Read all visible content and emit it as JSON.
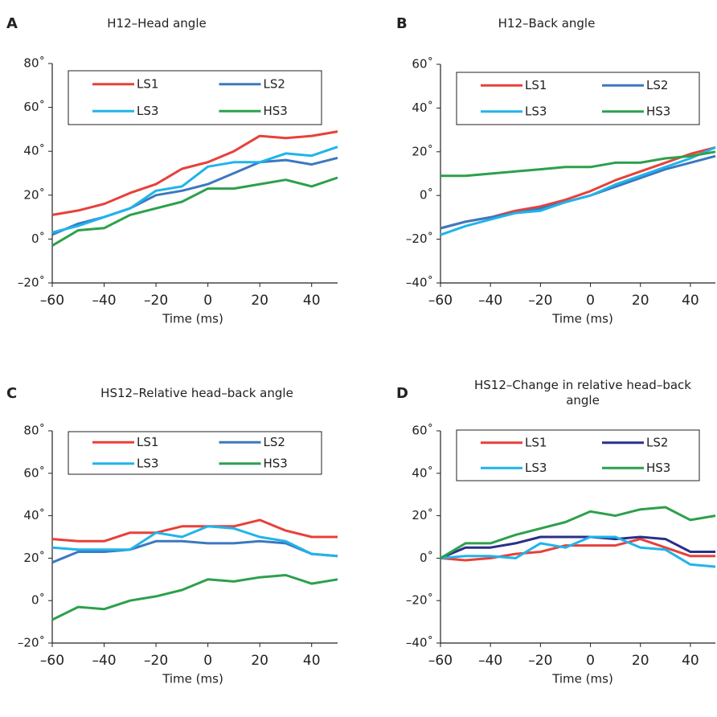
{
  "chart_data": [
    {
      "type": "line",
      "label": "A",
      "title": "H12–Head angle",
      "xlabel": "Time (ms)",
      "x": [
        -60,
        -50,
        -40,
        -30,
        -20,
        -10,
        0,
        10,
        20,
        30,
        40,
        50
      ],
      "xlim": [
        -60,
        50
      ],
      "xticks": [
        {
          "value": -60,
          "label": "–60"
        },
        {
          "value": -40,
          "label": "–40"
        },
        {
          "value": -20,
          "label": "–20"
        },
        0,
        20,
        40
      ],
      "ylim": [
        -20,
        80
      ],
      "yticks": [
        {
          "value": -20,
          "label": "–20˚"
        },
        {
          "value": 0,
          "label": "0˚"
        },
        {
          "value": 20,
          "label": "20˚"
        },
        {
          "value": 40,
          "label": "40˚"
        },
        {
          "value": 60,
          "label": "60˚"
        },
        {
          "value": 80,
          "label": "80˚"
        }
      ],
      "series": [
        {
          "name": "LS1",
          "color": "#e8403a",
          "values": [
            11,
            13,
            16,
            21,
            25,
            32,
            35,
            40,
            47,
            46,
            47,
            49
          ]
        },
        {
          "name": "LS2",
          "color": "#3c78c0",
          "values": [
            2,
            7,
            10,
            14,
            20,
            22,
            25,
            30,
            35,
            36,
            34,
            37
          ]
        },
        {
          "name": "LS3",
          "color": "#20b4ea",
          "values": [
            3,
            6,
            10,
            14,
            22,
            24,
            33,
            35,
            35,
            39,
            38,
            42
          ]
        },
        {
          "name": "HS3",
          "color": "#2ca04c",
          "values": [
            -3,
            4,
            5,
            11,
            14,
            17,
            23,
            23,
            25,
            27,
            24,
            28
          ]
        }
      ]
    },
    {
      "type": "line",
      "label": "B",
      "title": "H12–Back angle",
      "xlabel": "Time (ms)",
      "x": [
        -60,
        -50,
        -40,
        -30,
        -20,
        -10,
        0,
        10,
        20,
        30,
        40,
        50
      ],
      "xlim": [
        -60,
        50
      ],
      "xticks": [
        {
          "value": -60,
          "label": "–60"
        },
        {
          "value": -40,
          "label": "–40"
        },
        {
          "value": -20,
          "label": "–20"
        },
        0,
        20,
        40
      ],
      "ylim": [
        -40,
        60
      ],
      "yticks": [
        {
          "value": -40,
          "label": "–40˚"
        },
        {
          "value": -20,
          "label": "–20˚"
        },
        {
          "value": 0,
          "label": "0˚"
        },
        {
          "value": 20,
          "label": "20˚"
        },
        {
          "value": 40,
          "label": "40˚"
        },
        {
          "value": 60,
          "label": "60˚"
        }
      ],
      "series": [
        {
          "name": "LS1",
          "color": "#e8403a",
          "values": [
            -15,
            -12,
            -10,
            -7,
            -5,
            -2,
            2,
            7,
            11,
            15,
            19,
            22
          ]
        },
        {
          "name": "LS2",
          "color": "#3c78c0",
          "values": [
            -15,
            -12,
            -10,
            -8,
            -6,
            -3,
            0,
            4,
            8,
            12,
            15,
            18
          ]
        },
        {
          "name": "LS3",
          "color": "#20b4ea",
          "values": [
            -18,
            -14,
            -11,
            -8,
            -7,
            -3,
            0,
            5,
            9,
            13,
            17,
            22
          ]
        },
        {
          "name": "HS3",
          "color": "#2ca04c",
          "values": [
            9,
            9,
            10,
            11,
            12,
            13,
            13,
            15,
            15,
            17,
            18,
            20
          ]
        }
      ]
    },
    {
      "type": "line",
      "label": "C",
      "title": "HS12–Relative head–back angle",
      "xlabel": "Time (ms)",
      "x": [
        -60,
        -50,
        -40,
        -30,
        -20,
        -10,
        0,
        10,
        20,
        30,
        40,
        50
      ],
      "xlim": [
        -60,
        50
      ],
      "xticks": [
        {
          "value": -60,
          "label": "–60"
        },
        {
          "value": -40,
          "label": "–40"
        },
        {
          "value": -20,
          "label": "–20"
        },
        0,
        20,
        40
      ],
      "ylim": [
        -20,
        80
      ],
      "yticks": [
        {
          "value": -20,
          "label": "–20˚"
        },
        {
          "value": 0,
          "label": "0˚"
        },
        {
          "value": 20,
          "label": "20˚"
        },
        {
          "value": 40,
          "label": "40˚"
        },
        {
          "value": 60,
          "label": "60˚"
        },
        {
          "value": 80,
          "label": "80˚"
        }
      ],
      "series": [
        {
          "name": "LS1",
          "color": "#e8403a",
          "values": [
            29,
            28,
            28,
            32,
            32,
            35,
            35,
            35,
            38,
            33,
            30,
            30
          ]
        },
        {
          "name": "LS2",
          "color": "#3c78c0",
          "values": [
            18,
            23,
            23,
            24,
            28,
            28,
            27,
            27,
            28,
            27,
            22,
            21
          ]
        },
        {
          "name": "LS3",
          "color": "#20b4ea",
          "values": [
            25,
            24,
            24,
            24,
            32,
            30,
            35,
            34,
            30,
            28,
            22,
            21
          ]
        },
        {
          "name": "HS3",
          "color": "#2ca04c",
          "values": [
            -9,
            -3,
            -4,
            0,
            2,
            5,
            10,
            9,
            11,
            12,
            8,
            10
          ]
        }
      ]
    },
    {
      "type": "line",
      "label": "D",
      "title": "HS12–Change in relative head–back angle",
      "xlabel": "Time (ms)",
      "x": [
        -60,
        -50,
        -40,
        -30,
        -20,
        -10,
        0,
        10,
        20,
        30,
        40,
        50
      ],
      "xlim": [
        -60,
        50
      ],
      "xticks": [
        {
          "value": -60,
          "label": "–60"
        },
        {
          "value": -40,
          "label": "–40"
        },
        {
          "value": -20,
          "label": "–20"
        },
        0,
        20,
        40
      ],
      "ylim": [
        -40,
        60
      ],
      "yticks": [
        {
          "value": -40,
          "label": "–40˚"
        },
        {
          "value": -20,
          "label": "–20˚"
        },
        {
          "value": 0,
          "label": "0˚"
        },
        {
          "value": 20,
          "label": "20˚"
        },
        {
          "value": 40,
          "label": "40˚"
        },
        {
          "value": 60,
          "label": "60˚"
        }
      ],
      "series": [
        {
          "name": "LS1",
          "color": "#e8403a",
          "values": [
            0,
            -1,
            0,
            2,
            3,
            6,
            6,
            6,
            9,
            5,
            1,
            1
          ]
        },
        {
          "name": "LS2",
          "color": "#2a2f8a",
          "values": [
            0,
            5,
            5,
            7,
            10,
            10,
            10,
            9,
            10,
            9,
            3,
            3
          ]
        },
        {
          "name": "LS3",
          "color": "#20b4ea",
          "values": [
            0,
            1,
            1,
            0,
            7,
            5,
            10,
            10,
            5,
            4,
            -3,
            -4
          ]
        },
        {
          "name": "HS3",
          "color": "#2ca04c",
          "values": [
            0,
            7,
            7,
            11,
            14,
            17,
            22,
            20,
            23,
            24,
            18,
            20
          ]
        }
      ]
    }
  ]
}
